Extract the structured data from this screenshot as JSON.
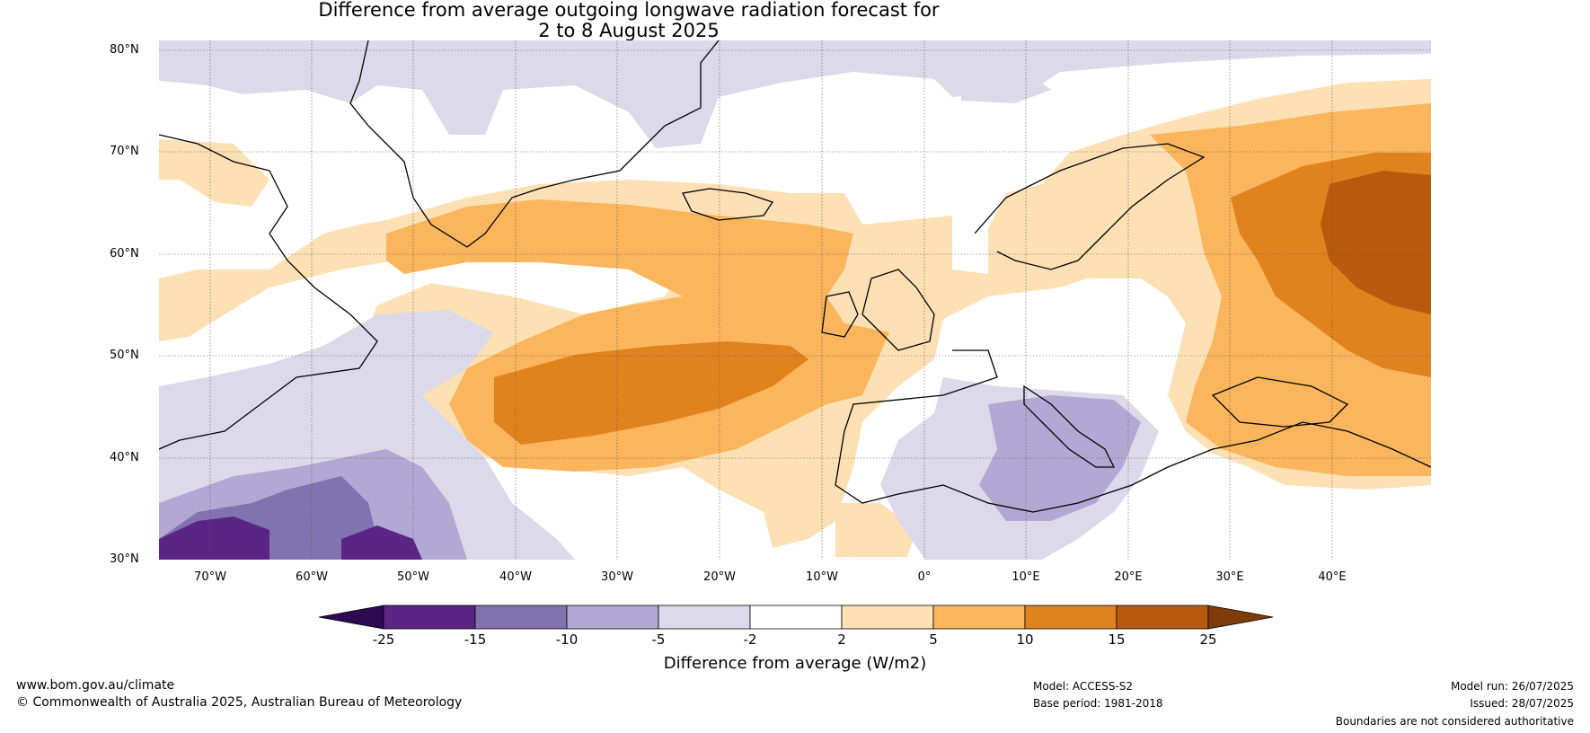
{
  "title_line1": "Difference from average outgoing longwave radiation forecast for",
  "title_line2": "2 to 8 August 2025",
  "lat_ticks": [
    "80°N",
    "70°N",
    "60°N",
    "50°N",
    "40°N",
    "30°N"
  ],
  "lon_ticks": [
    "70°W",
    "60°W",
    "50°W",
    "40°W",
    "30°W",
    "20°W",
    "10°W",
    "0°",
    "10°E",
    "20°E",
    "30°E",
    "40°E"
  ],
  "colorbar": {
    "labels": [
      "-25",
      "-15",
      "-10",
      "-5",
      "-2",
      "2",
      "5",
      "10",
      "15",
      "25"
    ],
    "colors": [
      "#2d0a52",
      "#5a2585",
      "#8173af",
      "#b1a9d3",
      "#dcdaea",
      "#ffffff",
      "#fde0b4",
      "#fab55d",
      "#e0821e",
      "#b85a0c",
      "#7e3c09"
    ],
    "title": "Difference from average (W/m2)"
  },
  "footer": {
    "url": "www.bom.gov.au/climate",
    "copyright": "© Commonwealth of Australia 2025, Australian Bureau of Meteorology",
    "model": "Model: ACCESS-S2",
    "base_period": "Base period: 1981-2018",
    "model_run": "Model run: 26/07/2025",
    "issued": "Issued: 28/07/2025",
    "disclaimer": "Boundaries are not considered authoritative"
  }
}
